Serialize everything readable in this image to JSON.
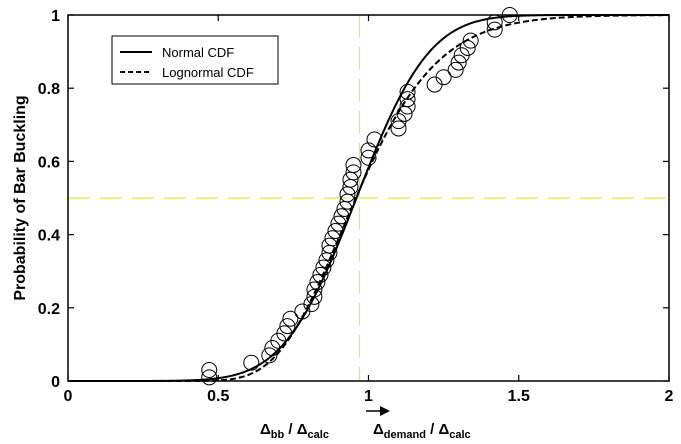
{
  "chart_data": {
    "type": "scatter",
    "xlim": [
      0,
      2
    ],
    "ylim": [
      0,
      1
    ],
    "x_ticks": [
      "0",
      "0.5",
      "1",
      "1.5",
      "2"
    ],
    "y_ticks": [
      "0",
      "0.2",
      "0.4",
      "0.6",
      "0.8",
      "1"
    ],
    "xlabel": {
      "delta": "Δ",
      "bb": "bb",
      "calc": "calc",
      "demand": "demand",
      "slash": " / "
    },
    "ylabel": "Probability of Bar Buckling",
    "grid": false,
    "legend_position": "top-left",
    "reference_lines": {
      "x": 0.97,
      "y": 0.5,
      "color": "#e8e840"
    },
    "series": [
      {
        "name": "Normal CDF",
        "kind": "normal-cdf",
        "mean": 0.96,
        "std": 0.19,
        "style": "solid"
      },
      {
        "name": "Lognormal CDF",
        "kind": "lognormal-cdf",
        "mu": -0.043,
        "sigma": 0.22,
        "style": "dashed"
      }
    ],
    "observations": {
      "marker": "open-circle",
      "points": [
        [
          0.47,
          0.01
        ],
        [
          0.47,
          0.03
        ],
        [
          0.61,
          0.05
        ],
        [
          0.67,
          0.07
        ],
        [
          0.68,
          0.09
        ],
        [
          0.7,
          0.11
        ],
        [
          0.72,
          0.13
        ],
        [
          0.73,
          0.15
        ],
        [
          0.74,
          0.17
        ],
        [
          0.78,
          0.19
        ],
        [
          0.81,
          0.21
        ],
        [
          0.82,
          0.23
        ],
        [
          0.82,
          0.25
        ],
        [
          0.83,
          0.27
        ],
        [
          0.84,
          0.29
        ],
        [
          0.85,
          0.31
        ],
        [
          0.86,
          0.33
        ],
        [
          0.87,
          0.35
        ],
        [
          0.87,
          0.37
        ],
        [
          0.88,
          0.39
        ],
        [
          0.89,
          0.41
        ],
        [
          0.9,
          0.43
        ],
        [
          0.91,
          0.45
        ],
        [
          0.92,
          0.47
        ],
        [
          0.93,
          0.49
        ],
        [
          0.93,
          0.51
        ],
        [
          0.94,
          0.53
        ],
        [
          0.94,
          0.55
        ],
        [
          0.95,
          0.57
        ],
        [
          0.95,
          0.59
        ],
        [
          1.0,
          0.61
        ],
        [
          1.0,
          0.63
        ],
        [
          1.02,
          0.66
        ],
        [
          1.1,
          0.69
        ],
        [
          1.1,
          0.71
        ],
        [
          1.12,
          0.73
        ],
        [
          1.13,
          0.75
        ],
        [
          1.13,
          0.77
        ],
        [
          1.13,
          0.79
        ],
        [
          1.22,
          0.81
        ],
        [
          1.25,
          0.83
        ],
        [
          1.29,
          0.85
        ],
        [
          1.3,
          0.87
        ],
        [
          1.31,
          0.89
        ],
        [
          1.33,
          0.91
        ],
        [
          1.34,
          0.93
        ],
        [
          1.42,
          0.96
        ],
        [
          1.42,
          0.98
        ],
        [
          1.47,
          1.0
        ]
      ]
    }
  }
}
